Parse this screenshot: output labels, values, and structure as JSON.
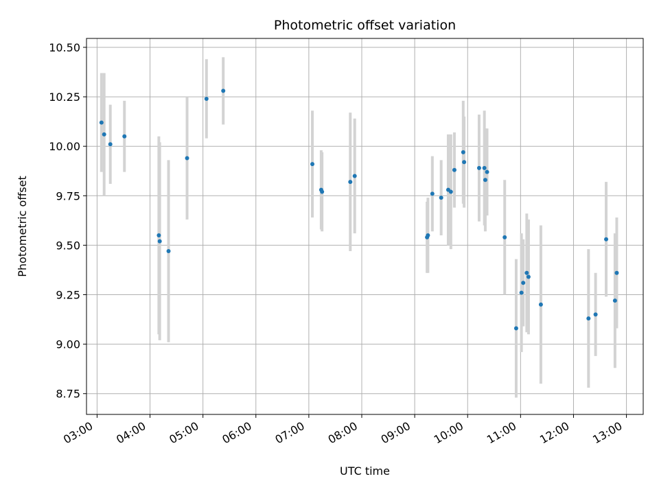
{
  "chart_data": {
    "type": "scatter",
    "title": "Photometric offset variation",
    "xlabel": "UTC time",
    "ylabel": "Photometric offset",
    "x_tick_labels": [
      "03:00",
      "04:00",
      "05:00",
      "06:00",
      "07:00",
      "08:00",
      "09:00",
      "10:00",
      "11:00",
      "12:00",
      "13:00"
    ],
    "y_ticks": [
      8.75,
      9.0,
      9.25,
      9.5,
      9.75,
      10.0,
      10.25,
      10.5
    ],
    "y_tick_labels": [
      "8.75",
      "9.00",
      "9.25",
      "9.50",
      "9.75",
      "10.00",
      "10.25",
      "10.50"
    ],
    "xlim": [
      "02:48",
      "13:19"
    ],
    "ylim": [
      8.645,
      10.545
    ],
    "grid": true,
    "marker_color": "#1f77b4",
    "errorbar_color": "#d3d3d3",
    "points": [
      {
        "t": "03:05",
        "y": 10.12,
        "err": 0.25
      },
      {
        "t": "03:08",
        "y": 10.06,
        "err": 0.31
      },
      {
        "t": "03:15",
        "y": 10.01,
        "err": 0.2
      },
      {
        "t": "03:31",
        "y": 10.05,
        "err": 0.18
      },
      {
        "t": "04:10",
        "y": 9.55,
        "err": 0.5
      },
      {
        "t": "04:11",
        "y": 9.52,
        "err": 0.5
      },
      {
        "t": "04:21",
        "y": 9.47,
        "err": 0.46
      },
      {
        "t": "04:42",
        "y": 9.94,
        "err": 0.31
      },
      {
        "t": "05:04",
        "y": 10.24,
        "err": 0.2
      },
      {
        "t": "05:23",
        "y": 10.28,
        "err": 0.17
      },
      {
        "t": "07:04",
        "y": 9.91,
        "err": 0.27
      },
      {
        "t": "07:14",
        "y": 9.78,
        "err": 0.2
      },
      {
        "t": "07:15",
        "y": 9.77,
        "err": 0.2
      },
      {
        "t": "07:47",
        "y": 9.82,
        "err": 0.35
      },
      {
        "t": "07:52",
        "y": 9.85,
        "err": 0.29
      },
      {
        "t": "09:14",
        "y": 9.54,
        "err": 0.18
      },
      {
        "t": "09:15",
        "y": 9.55,
        "err": 0.19
      },
      {
        "t": "09:20",
        "y": 9.76,
        "err": 0.19
      },
      {
        "t": "09:30",
        "y": 9.74,
        "err": 0.19
      },
      {
        "t": "09:38",
        "y": 9.78,
        "err": 0.28
      },
      {
        "t": "09:41",
        "y": 9.77,
        "err": 0.29
      },
      {
        "t": "09:45",
        "y": 9.88,
        "err": 0.19
      },
      {
        "t": "09:55",
        "y": 9.97,
        "err": 0.26
      },
      {
        "t": "09:56",
        "y": 9.92,
        "err": 0.23
      },
      {
        "t": "10:13",
        "y": 9.89,
        "err": 0.27
      },
      {
        "t": "10:19",
        "y": 9.89,
        "err": 0.29
      },
      {
        "t": "10:20",
        "y": 9.83,
        "err": 0.26
      },
      {
        "t": "10:22",
        "y": 9.87,
        "err": 0.22
      },
      {
        "t": "10:42",
        "y": 9.54,
        "err": 0.29
      },
      {
        "t": "10:55",
        "y": 9.08,
        "err": 0.35
      },
      {
        "t": "11:01",
        "y": 9.26,
        "err": 0.3
      },
      {
        "t": "11:03",
        "y": 9.31,
        "err": 0.22
      },
      {
        "t": "11:07",
        "y": 9.36,
        "err": 0.3
      },
      {
        "t": "11:09",
        "y": 9.34,
        "err": 0.29
      },
      {
        "t": "11:23",
        "y": 9.2,
        "err": 0.4
      },
      {
        "t": "12:17",
        "y": 9.13,
        "err": 0.35
      },
      {
        "t": "12:25",
        "y": 9.15,
        "err": 0.21
      },
      {
        "t": "12:37",
        "y": 9.53,
        "err": 0.29
      },
      {
        "t": "12:47",
        "y": 9.22,
        "err": 0.34
      },
      {
        "t": "12:49",
        "y": 9.36,
        "err": 0.28
      }
    ]
  }
}
